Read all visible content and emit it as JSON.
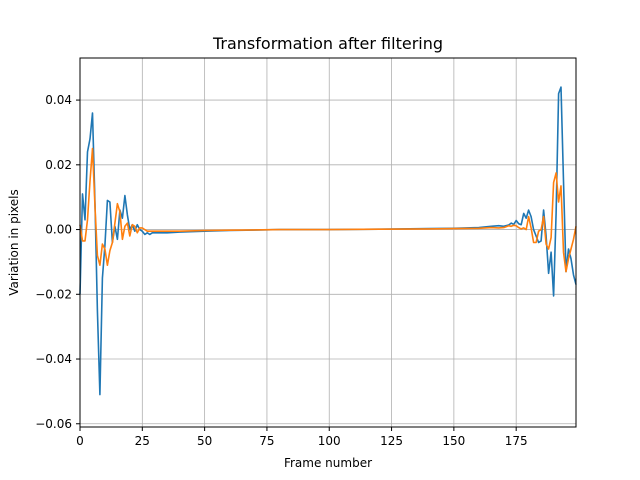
{
  "chart_data": {
    "type": "line",
    "title": "Transformation after filtering",
    "xlabel": "Frame number",
    "ylabel": "Variation in pixels",
    "xlim": [
      0,
      199
    ],
    "ylim": [
      -0.061,
      0.053
    ],
    "xticks": [
      0,
      25,
      50,
      75,
      100,
      125,
      150,
      175
    ],
    "xtick_labels": [
      "0",
      "25",
      "50",
      "75",
      "100",
      "125",
      "150",
      "175"
    ],
    "yticks": [
      -0.06,
      -0.04,
      -0.02,
      0.0,
      0.02,
      0.04
    ],
    "ytick_labels": [
      "−0.06",
      "−0.04",
      "−0.02",
      "0.00",
      "0.02",
      "0.04"
    ],
    "grid": true,
    "colors": [
      "#1f77b4",
      "#ff7f0e"
    ],
    "series": [
      {
        "x": [
          0,
          1,
          2,
          3,
          4,
          5,
          6,
          7,
          8,
          9,
          10,
          11,
          12,
          13,
          14,
          15,
          16,
          17,
          18,
          19,
          20,
          21,
          22,
          23,
          24,
          25,
          26,
          27,
          28,
          29,
          30,
          35,
          40,
          50,
          60,
          80,
          100,
          120,
          140,
          150,
          160,
          165,
          168,
          170,
          172,
          173,
          174,
          175,
          176,
          177,
          178,
          179,
          180,
          181,
          182,
          183,
          184,
          185,
          186,
          187,
          188,
          189,
          190,
          191,
          192,
          193,
          194,
          195,
          196,
          197,
          198,
          199
        ],
        "values": [
          -0.02,
          0.011,
          0.003,
          0.024,
          0.028,
          0.036,
          0.008,
          -0.025,
          -0.051,
          -0.015,
          -0.005,
          0.009,
          0.0085,
          -0.004,
          0.001,
          -0.003,
          0.006,
          0.0035,
          0.0105,
          0.0045,
          0.0,
          0.0015,
          -0.0005,
          0.0015,
          0.0,
          -0.0005,
          -0.0015,
          -0.001,
          -0.0015,
          -0.001,
          -0.001,
          -0.001,
          -0.0008,
          -0.0005,
          -0.0003,
          0.0,
          0.0,
          0.0001,
          0.0003,
          0.0004,
          0.0006,
          0.001,
          0.0012,
          0.001,
          0.0014,
          0.002,
          0.0016,
          0.0028,
          0.0018,
          0.0015,
          0.005,
          0.0035,
          0.006,
          0.004,
          0.0,
          -0.002,
          -0.004,
          -0.0035,
          0.006,
          -0.002,
          -0.0135,
          -0.007,
          -0.0205,
          0.005,
          0.042,
          0.044,
          0.015,
          -0.013,
          -0.006,
          -0.009,
          -0.014,
          -0.017
        ]
      },
      {
        "x": [
          0,
          1,
          2,
          3,
          4,
          5,
          6,
          7,
          8,
          9,
          10,
          11,
          12,
          13,
          14,
          15,
          16,
          17,
          18,
          19,
          20,
          21,
          22,
          23,
          24,
          25,
          26,
          27,
          28,
          29,
          30,
          35,
          40,
          50,
          60,
          80,
          100,
          120,
          140,
          150,
          160,
          165,
          168,
          170,
          172,
          173,
          174,
          175,
          176,
          177,
          178,
          179,
          180,
          181,
          182,
          183,
          184,
          185,
          186,
          187,
          188,
          189,
          190,
          191,
          192,
          193,
          194,
          195,
          196,
          197,
          198,
          199
        ],
        "values": [
          0.0015,
          -0.0035,
          -0.0035,
          0.003,
          0.015,
          0.025,
          0.007,
          -0.008,
          -0.011,
          -0.0045,
          -0.006,
          -0.011,
          -0.0065,
          -0.004,
          0.002,
          0.008,
          0.0055,
          -0.003,
          0.001,
          0.002,
          -0.002,
          0.0015,
          0.001,
          -0.001,
          0.0005,
          0.0005,
          0.0,
          -0.0005,
          -0.0005,
          -0.0005,
          -0.0005,
          -0.0005,
          -0.0005,
          -0.0003,
          -0.0002,
          0.0,
          0.0,
          0.0001,
          0.0002,
          0.0003,
          0.0004,
          0.0006,
          0.0005,
          0.0006,
          0.0012,
          0.001,
          0.0013,
          0.0012,
          0.0006,
          0.0002,
          0.0005,
          0.0,
          0.004,
          0.0005,
          -0.004,
          -0.004,
          -0.0005,
          0.0,
          0.004,
          -0.0045,
          -0.006,
          -0.0025,
          0.0145,
          0.0175,
          0.0085,
          0.0135,
          -0.007,
          -0.013,
          -0.009,
          -0.006,
          -0.003,
          0.001
        ]
      }
    ]
  }
}
